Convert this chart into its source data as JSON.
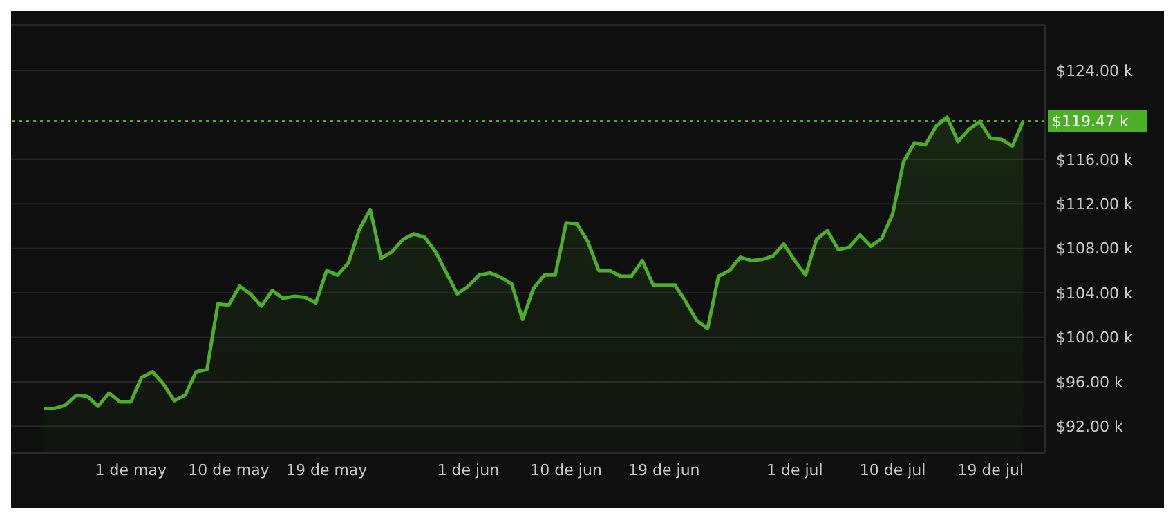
{
  "chart_data": {
    "type": "area",
    "x": [
      "--04-23",
      "--04-24",
      "--04-25",
      "--04-26",
      "--04-27",
      "--04-28",
      "--04-29",
      "--04-30",
      "--05-01",
      "--05-02",
      "--05-03",
      "--05-04",
      "--05-05",
      "--05-06",
      "--05-07",
      "--05-08",
      "--05-09",
      "--05-10",
      "--05-11",
      "--05-12",
      "--05-13",
      "--05-14",
      "--05-15",
      "--05-16",
      "--05-17",
      "--05-18",
      "--05-19",
      "--05-20",
      "--05-21",
      "--05-22",
      "--05-23",
      "--05-24",
      "--05-25",
      "--05-26",
      "--05-27",
      "--05-28",
      "--05-29",
      "--05-30",
      "--05-31",
      "--06-01",
      "--06-02",
      "--06-03",
      "--06-04",
      "--06-05",
      "--06-06",
      "--06-07",
      "--06-08",
      "--06-09",
      "--06-10",
      "--06-11",
      "--06-12",
      "--06-13",
      "--06-14",
      "--06-15",
      "--06-16",
      "--06-17",
      "--06-18",
      "--06-19",
      "--06-20",
      "--06-21",
      "--06-22",
      "--06-23",
      "--06-24",
      "--06-25",
      "--06-26",
      "--06-27",
      "--06-28",
      "--06-29",
      "--06-30",
      "--07-01",
      "--07-02",
      "--07-03",
      "--07-04",
      "--07-05",
      "--07-06",
      "--07-07",
      "--07-08",
      "--07-09",
      "--07-10",
      "--07-11",
      "--07-12",
      "--07-13",
      "--07-14",
      "--07-15",
      "--07-16",
      "--07-17",
      "--07-18",
      "--07-19",
      "--07-20",
      "--07-21",
      "--07-22"
    ],
    "series": [
      {
        "color": "#4caf27",
        "values": [
          93.6,
          93.6,
          93.9,
          94.8,
          94.7,
          93.8,
          95.0,
          94.2,
          94.2,
          96.4,
          96.9,
          95.8,
          94.3,
          94.8,
          96.9,
          97.1,
          103.0,
          102.9,
          104.6,
          103.9,
          102.8,
          104.2,
          103.5,
          103.7,
          103.6,
          103.1,
          106.0,
          105.6,
          106.7,
          109.7,
          111.5,
          107.1,
          107.7,
          108.8,
          109.3,
          109.0,
          107.7,
          105.8,
          103.9,
          104.6,
          105.6,
          105.8,
          105.4,
          104.8,
          101.6,
          104.4,
          105.6,
          105.6,
          110.3,
          110.2,
          108.6,
          106.0,
          106.0,
          105.5,
          105.5,
          106.9,
          104.7,
          104.7,
          104.7,
          103.2,
          101.5,
          100.8,
          105.5,
          106.0,
          107.2,
          106.9,
          107.0,
          107.3,
          108.4,
          106.9,
          105.6,
          108.8,
          109.6,
          107.9,
          108.1,
          109.2,
          108.2,
          108.9,
          111.1,
          115.8,
          117.5,
          117.3,
          119.0,
          119.8,
          117.6,
          118.7,
          119.4,
          117.9,
          117.8,
          117.2,
          119.47
        ]
      }
    ],
    "xlim": [
      "--04-20",
      "--07-24"
    ],
    "xticks": [
      {
        "value": "--05-01",
        "label": "1 de may"
      },
      {
        "value": "--05-10",
        "label": "10 de may"
      },
      {
        "value": "--05-19",
        "label": "19 de may"
      },
      {
        "value": "--06-01",
        "label": "1 de jun"
      },
      {
        "value": "--06-10",
        "label": "10 de jun"
      },
      {
        "value": "--06-19",
        "label": "19 de jun"
      },
      {
        "value": "--07-01",
        "label": "1 de jul"
      },
      {
        "value": "--07-10",
        "label": "10 de jul"
      },
      {
        "value": "--07-19",
        "label": "19 de jul"
      }
    ],
    "ylim": [
      89.6,
      128.1
    ],
    "yticks": [
      {
        "value": 92,
        "label": "$92.00 k"
      },
      {
        "value": 96,
        "label": "$96.00 k"
      },
      {
        "value": 100,
        "label": "$100.00 k"
      },
      {
        "value": 104,
        "label": "$104.00 k"
      },
      {
        "value": 108,
        "label": "$108.00 k"
      },
      {
        "value": 112,
        "label": "$112.00 k"
      },
      {
        "value": 116,
        "label": "$116.00 k"
      },
      {
        "value": 124,
        "label": "$124.00 k"
      }
    ],
    "grid": "y",
    "ref_lines": [
      {
        "axis": "y",
        "value": 119.47,
        "label": "$119.47 k",
        "color": "#4caf27",
        "line_style": "dotted"
      }
    ]
  }
}
